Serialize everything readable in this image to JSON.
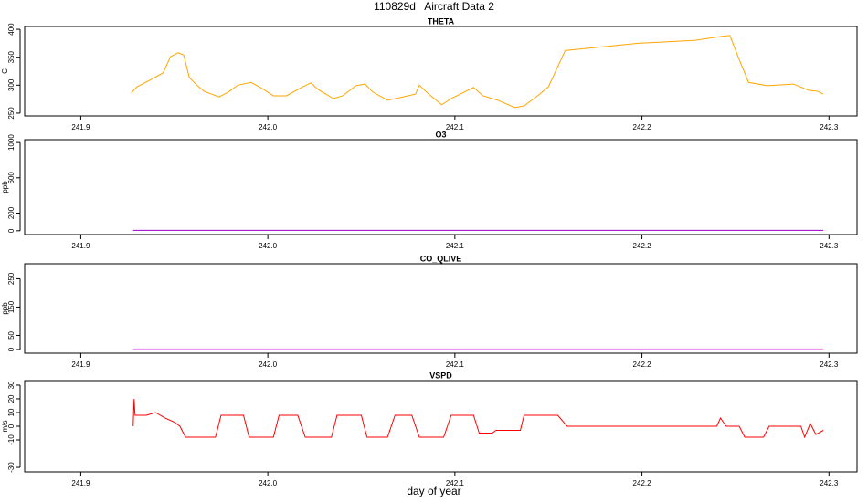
{
  "title": "110829d   Aircraft Data 2",
  "xlabel": "day of year",
  "chart_data": [
    {
      "type": "line",
      "title": "THETA",
      "ylabel": "C",
      "color": "#ffa500",
      "xlim": [
        241.87,
        242.315
      ],
      "ylim": [
        245,
        405
      ],
      "xticks": [
        {
          "value": 241.9,
          "label": "241.9"
        },
        {
          "value": 242,
          "label": "242.0"
        },
        {
          "value": 242.1,
          "label": "242.1"
        },
        {
          "value": 242.2,
          "label": "242.2"
        },
        {
          "value": 242.3,
          "label": "242.3"
        }
      ],
      "yticks": [
        250,
        300,
        350,
        400
      ],
      "x": [
        241.927,
        241.93,
        241.937,
        241.944,
        241.948,
        241.952,
        241.955,
        241.958,
        241.962,
        241.966,
        241.974,
        241.979,
        241.984,
        241.991,
        241.996,
        242.003,
        242.01,
        242.018,
        242.023,
        242.027,
        242.035,
        242.04,
        242.047,
        242.052,
        242.056,
        242.064,
        242.071,
        242.079,
        242.081,
        242.086,
        242.093,
        242.098,
        242.11,
        242.115,
        242.123,
        242.132,
        242.137,
        242.145,
        242.15,
        242.159,
        242.174,
        242.198,
        242.228,
        242.242,
        242.247,
        242.252,
        242.257,
        242.267,
        242.281,
        242.289,
        242.294,
        242.297
      ],
      "values": [
        286,
        297,
        309,
        322,
        351,
        358,
        354,
        314,
        300,
        289,
        279,
        288,
        300,
        305,
        296,
        281,
        281,
        296,
        304,
        292,
        276,
        281,
        299,
        302,
        288,
        273,
        278,
        284,
        300,
        284,
        265,
        276,
        296,
        281,
        273,
        260,
        263,
        283,
        297,
        362,
        367,
        375,
        380,
        387,
        389,
        346,
        305,
        299,
        302,
        291,
        289,
        284
      ]
    },
    {
      "type": "line",
      "title": "O3",
      "ylabel": "ppb",
      "color": "#9900cc",
      "xlim": [
        241.87,
        242.315
      ],
      "ylim": [
        -43,
        1032
      ],
      "xticks": [
        {
          "value": 241.9,
          "label": "241.9"
        },
        {
          "value": 242,
          "label": "242.0"
        },
        {
          "value": 242.1,
          "label": "242.1"
        },
        {
          "value": 242.2,
          "label": "242.2"
        },
        {
          "value": 242.3,
          "label": "242.3"
        }
      ],
      "yticks": [
        0,
        200,
        600,
        1000
      ],
      "x": [
        241.928,
        242.297
      ],
      "values": [
        5,
        5
      ]
    },
    {
      "type": "line",
      "title": "CO_QLIVE",
      "ylabel": "ppb",
      "color": "#ee82ee",
      "xlim": [
        241.87,
        242.315
      ],
      "ylim": [
        -13,
        303
      ],
      "xticks": [
        {
          "value": 241.9,
          "label": "241.9"
        },
        {
          "value": 242,
          "label": "242.0"
        },
        {
          "value": 242.1,
          "label": "242.1"
        },
        {
          "value": 242.2,
          "label": "242.2"
        },
        {
          "value": 242.3,
          "label": "242.3"
        }
      ],
      "yticks": [
        0,
        50,
        150,
        250
      ],
      "x": [
        241.928,
        242.297
      ],
      "values": [
        2,
        2
      ]
    },
    {
      "type": "line",
      "title": "VSPD",
      "ylabel": "m/s",
      "color": "#ff0000",
      "xlim": [
        241.87,
        242.315
      ],
      "ylim": [
        -33.3,
        33.3
      ],
      "xticks": [
        {
          "value": 241.9,
          "label": "241.9"
        },
        {
          "value": 242,
          "label": "242.0"
        },
        {
          "value": 242.1,
          "label": "242.1"
        },
        {
          "value": 242.2,
          "label": "242.2"
        },
        {
          "value": 242.3,
          "label": "242.3"
        }
      ],
      "yticks": [
        -30,
        -10,
        0,
        10,
        20,
        30
      ],
      "x": [
        241.928,
        241.9285,
        241.929,
        241.935,
        241.94,
        241.945,
        241.95,
        241.953,
        241.956,
        241.972,
        241.975,
        241.987,
        241.99,
        242.003,
        242.006,
        242.016,
        242.02,
        242.034,
        242.037,
        242.05,
        242.053,
        242.064,
        242.068,
        242.077,
        242.081,
        242.094,
        242.098,
        242.11,
        242.113,
        242.12,
        242.122,
        242.135,
        242.137,
        242.155,
        242.16,
        242.24,
        242.242,
        242.245,
        242.252,
        242.255,
        242.265,
        242.268,
        242.285,
        242.287,
        242.29,
        242.293,
        242.297
      ],
      "values": [
        0,
        20,
        8,
        8,
        10,
        6,
        3,
        0,
        -8,
        -8,
        8,
        8,
        -8,
        -8,
        8,
        8,
        -8,
        -8,
        8,
        8,
        -8,
        -8,
        8,
        8,
        -8,
        -8,
        8,
        8,
        -5,
        -5,
        -3,
        -3,
        8,
        8,
        0,
        0,
        6,
        0,
        0,
        -8,
        -8,
        0,
        0,
        -8,
        2,
        -6,
        -3
      ]
    }
  ]
}
